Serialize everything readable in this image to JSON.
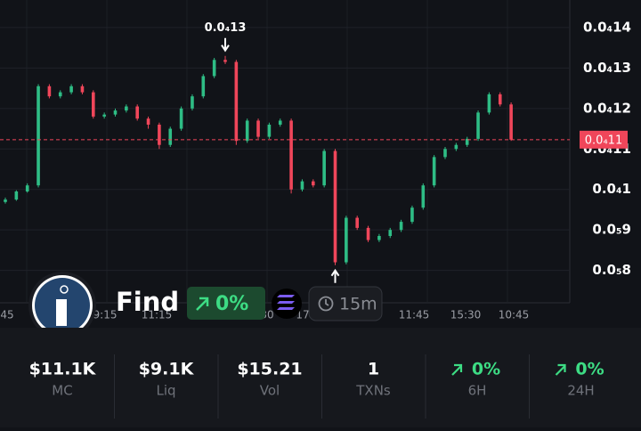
{
  "chart_data": {
    "type": "candlestick",
    "open": [
      9.69e-06,
      9.75e-06,
      9.95e-06,
      1.01e-05,
      1.255e-05,
      1.23e-05,
      1.24e-05,
      1.255e-05,
      1.24e-05,
      1.18e-05,
      1.185e-05,
      1.195e-05,
      1.205e-05,
      1.175e-05,
      1.16e-05,
      1.11e-05,
      1.15e-05,
      1.2e-05,
      1.23e-05,
      1.28e-05,
      1.32e-05,
      1.315e-05,
      1.12e-05,
      1.17e-05,
      1.13e-05,
      1.16e-05,
      1.17e-05,
      1e-05,
      1.02e-05,
      1.01e-05,
      1.095e-05,
      8.2e-06,
      9.3e-06,
      9.05e-06,
      8.75e-06,
      8.85e-06,
      9e-06,
      9.2e-06,
      9.55e-06,
      1.01e-05,
      1.08e-05,
      1.1e-05,
      1.11e-05,
      1.125e-05,
      1.19e-05,
      1.235e-05,
      1.21e-05
    ],
    "high": [
      9.8e-06,
      9.98e-06,
      1.015e-05,
      1.26e-05,
      1.26e-05,
      1.245e-05,
      1.26e-05,
      1.26e-05,
      1.245e-05,
      1.19e-05,
      1.2e-05,
      1.21e-05,
      1.21e-05,
      1.18e-05,
      1.165e-05,
      1.155e-05,
      1.205e-05,
      1.235e-05,
      1.285e-05,
      1.325e-05,
      1.33e-05,
      1.32e-05,
      1.175e-05,
      1.175e-05,
      1.165e-05,
      1.175e-05,
      1.175e-05,
      1.025e-05,
      1.025e-05,
      1.1e-05,
      1.1e-05,
      9.35e-06,
      9.35e-06,
      9.1e-06,
      8.9e-06,
      9.05e-06,
      9.25e-06,
      9.6e-06,
      1.015e-05,
      1.085e-05,
      1.105e-05,
      1.115e-05,
      1.13e-05,
      1.195e-05,
      1.24e-05,
      1.24e-05,
      1.215e-05
    ],
    "low": [
      9.65e-06,
      9.72e-06,
      9.92e-06,
      1.005e-05,
      1.225e-05,
      1.225e-05,
      1.235e-05,
      1.235e-05,
      1.175e-05,
      1.175e-05,
      1.18e-05,
      1.19e-05,
      1.17e-05,
      1.15e-05,
      1.1e-05,
      1.105e-05,
      1.145e-05,
      1.195e-05,
      1.225e-05,
      1.275e-05,
      1.31e-05,
      1.11e-05,
      1.115e-05,
      1.125e-05,
      1.125e-05,
      1.155e-05,
      9.9e-06,
      9.95e-06,
      1.005e-05,
      1.005e-05,
      8.13e-06,
      8.15e-06,
      9e-06,
      8.7e-06,
      8.7e-06,
      8.8e-06,
      8.95e-06,
      9.15e-06,
      9.5e-06,
      1.005e-05,
      1.075e-05,
      1.095e-05,
      1.105e-05,
      1.12e-05,
      1.185e-05,
      1.205e-05,
      1.12e-05
    ],
    "close": [
      9.75e-06,
      9.95e-06,
      1.01e-05,
      1.255e-05,
      1.23e-05,
      1.24e-05,
      1.255e-05,
      1.24e-05,
      1.18e-05,
      1.185e-05,
      1.195e-05,
      1.205e-05,
      1.175e-05,
      1.16e-05,
      1.11e-05,
      1.15e-05,
      1.2e-05,
      1.23e-05,
      1.28e-05,
      1.32e-05,
      1.315e-05,
      1.12e-05,
      1.17e-05,
      1.13e-05,
      1.16e-05,
      1.17e-05,
      1e-05,
      1.02e-05,
      1.01e-05,
      1.095e-05,
      8.2e-06,
      9.3e-06,
      9.05e-06,
      8.75e-06,
      8.85e-06,
      9e-06,
      9.2e-06,
      9.55e-06,
      1.01e-05,
      1.08e-05,
      1.1e-05,
      1.11e-05,
      1.125e-05,
      1.19e-05,
      1.235e-05,
      1.21e-05,
      1.123e-05
    ],
    "up_color": "#2ebd85",
    "down_color": "#f0465a",
    "ylim": [
      7.2e-06,
      1.468e-05
    ],
    "yticks": [
      {
        "value": 1.4e-05,
        "label": "0.0₄14"
      },
      {
        "value": 1.3e-05,
        "label": "0.0₄13"
      },
      {
        "value": 1.2e-05,
        "label": "0.0₄12"
      },
      {
        "value": 1.1e-05,
        "label": "0.0₄11"
      },
      {
        "value": 1e-05,
        "label": "0.0₄1"
      },
      {
        "value": 9e-06,
        "label": "0.0₅9"
      },
      {
        "value": 8e-06,
        "label": "0.0₅8"
      }
    ],
    "grid": true,
    "x_labels": [
      "45",
      "9:15",
      "11:15",
      "30",
      "17:",
      "11:45",
      "15:30",
      "10:45"
    ],
    "current_price": {
      "value": 1.123e-05,
      "label": "0.0₄11"
    },
    "high_marker": "0.0₄13"
  },
  "token": {
    "name": "Find",
    "change": "0%",
    "interval": "15m"
  },
  "stats": [
    {
      "value": "$11.1K",
      "label": "MC"
    },
    {
      "value": "$9.1K",
      "label": "Liq"
    },
    {
      "value": "$15.21",
      "label": "Vol"
    },
    {
      "value": "1",
      "label": "TXNs"
    },
    {
      "value": "0%",
      "label": "6H"
    },
    {
      "value": "0%",
      "label": "24H"
    }
  ]
}
